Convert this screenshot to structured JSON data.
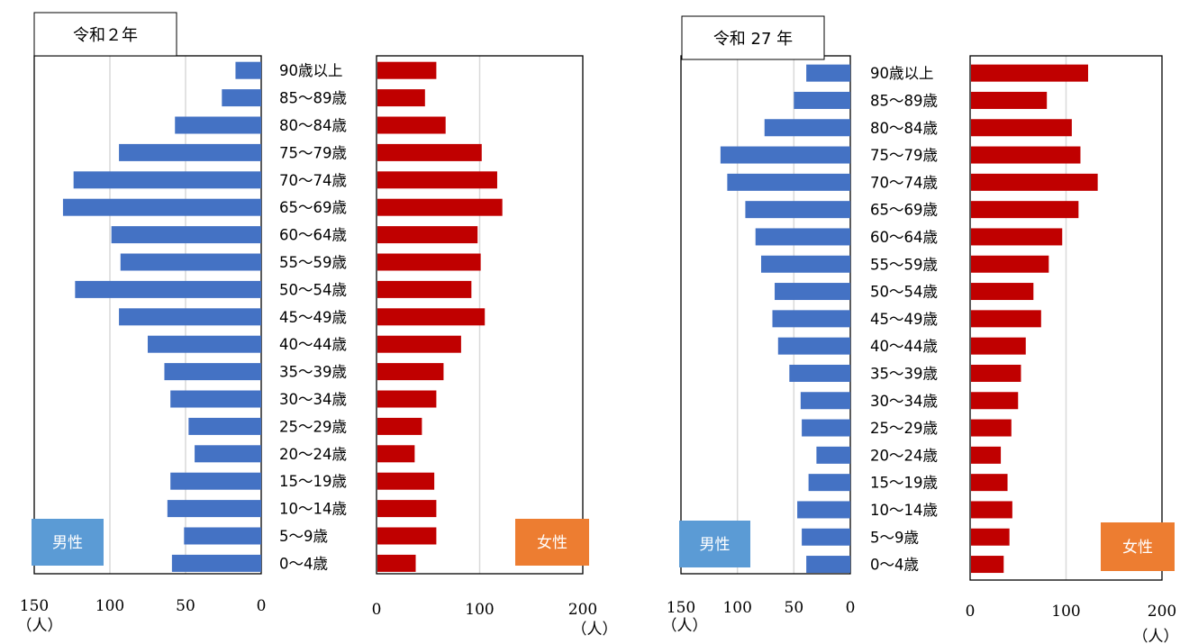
{
  "colors": {
    "male": "#4472C4",
    "female": "#C00000",
    "male_badge": "#5B9BD5",
    "female_badge": "#ED7D31",
    "grid": "#D9D9D9"
  },
  "chart_data": [
    {
      "type": "bar",
      "title": "令和２年",
      "categories": [
        "90歳以上",
        "85～89歳",
        "80～84歳",
        "75～79歳",
        "70～74歳",
        "65～69歳",
        "60～64歳",
        "55～59歳",
        "50～54歳",
        "45～49歳",
        "40～44歳",
        "35～39歳",
        "30～34歳",
        "25～29歳",
        "20～24歳",
        "15～19歳",
        "10～14歳",
        "5～9歳",
        "0～4歳"
      ],
      "series": [
        {
          "name": "男性",
          "values": [
            17,
            26,
            57,
            94,
            124,
            131,
            99,
            93,
            123,
            94,
            75,
            64,
            60,
            48,
            44,
            60,
            62,
            51,
            59
          ]
        },
        {
          "name": "女性",
          "values": [
            58,
            47,
            67,
            102,
            117,
            122,
            98,
            101,
            92,
            105,
            82,
            65,
            58,
            44,
            37,
            56,
            58,
            58,
            38
          ]
        }
      ],
      "male_axis": {
        "ticks": [
          "150",
          "100",
          "50",
          "0"
        ],
        "unit": "（人）",
        "xlim": [
          150,
          0
        ]
      },
      "female_axis": {
        "ticks": [
          "0",
          "100",
          "200"
        ],
        "unit": "（人）",
        "xlim": [
          0,
          200
        ]
      }
    },
    {
      "type": "bar",
      "title": "令和 27 年",
      "categories": [
        "90歳以上",
        "85～89歳",
        "80～84歳",
        "75～79歳",
        "70～74歳",
        "65～69歳",
        "60～64歳",
        "55～59歳",
        "50～54歳",
        "45～49歳",
        "40～44歳",
        "35～39歳",
        "30～34歳",
        "25～29歳",
        "20～24歳",
        "15～19歳",
        "10～14歳",
        "5～9歳",
        "0～4歳"
      ],
      "series": [
        {
          "name": "男性",
          "values": [
            39,
            50,
            76,
            115,
            109,
            93,
            84,
            79,
            67,
            69,
            64,
            54,
            44,
            43,
            30,
            37,
            47,
            43,
            39
          ]
        },
        {
          "name": "女性",
          "values": [
            123,
            80,
            106,
            115,
            133,
            113,
            96,
            82,
            66,
            74,
            58,
            53,
            50,
            43,
            32,
            39,
            44,
            41,
            35
          ]
        }
      ],
      "male_axis": {
        "ticks": [
          "150",
          "100",
          "50",
          "0"
        ],
        "unit": "（人）",
        "xlim": [
          150,
          0
        ]
      },
      "female_axis": {
        "ticks": [
          "0",
          "100",
          "200"
        ],
        "unit": "（人）",
        "xlim": [
          0,
          200
        ]
      }
    }
  ]
}
